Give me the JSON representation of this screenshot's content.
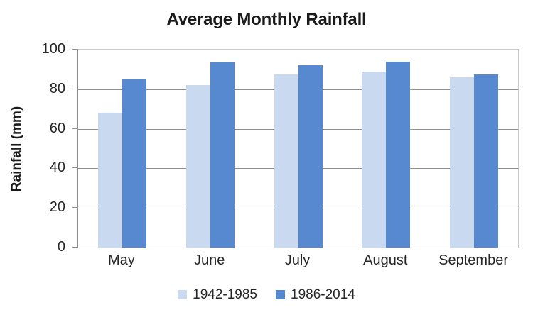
{
  "chart_data": {
    "type": "bar",
    "title": "Average Monthly Rainfall",
    "ylabel": "Rainfall (mm)",
    "xlabel": "",
    "categories": [
      "May",
      "June",
      "July",
      "August",
      "September"
    ],
    "series": [
      {
        "name": "1942-1985",
        "color": "#c8d9f0",
        "values": [
          68,
          82,
          87.5,
          89,
          86
        ]
      },
      {
        "name": "1986-2014",
        "color": "#5689cf",
        "values": [
          85,
          93.5,
          92,
          94,
          87.5
        ]
      }
    ],
    "ylim": [
      0,
      100
    ],
    "yticks": [
      0,
      20,
      40,
      60,
      80,
      100
    ],
    "grid": "horizontal",
    "legend_position": "bottom"
  },
  "style": {
    "grid_color": "#8e8e8e",
    "border_color": "#c9c9c9",
    "text_color": "#262626",
    "title_color": "#1a1a1a",
    "background": "#ffffff"
  }
}
